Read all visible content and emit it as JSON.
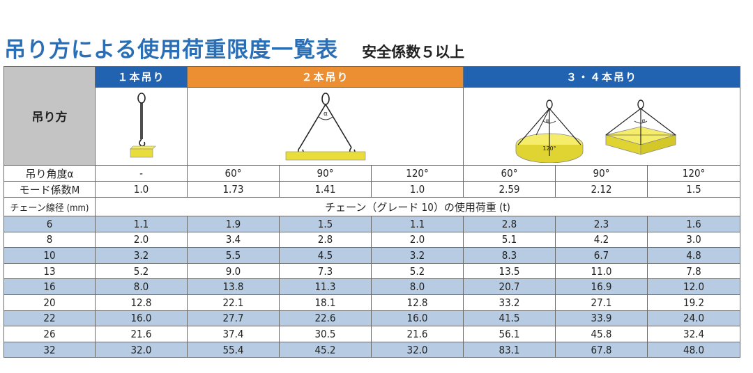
{
  "title": "吊り方による使用荷重限度一覧表",
  "subtitle": "安全係数５以上",
  "headers": {
    "method_label": "吊り方",
    "single": "１本吊り",
    "double": "２本吊り",
    "quad": "３・４本吊り"
  },
  "diagram_labels": {
    "alpha": "α",
    "angle_120": "120°"
  },
  "rows": {
    "angle": {
      "label": "吊り角度α",
      "values": [
        "-",
        "60°",
        "90°",
        "120°",
        "60°",
        "90°",
        "120°"
      ]
    },
    "mode": {
      "label": "モード係数M",
      "values": [
        "1.0",
        "1.73",
        "1.41",
        "1.0",
        "2.59",
        "2.12",
        "1.5"
      ]
    },
    "chain_header": {
      "label": "チェーン線径 (mm)",
      "span_text": "チェーン（グレード 10）の使用荷重 (t)"
    }
  },
  "data_rows": [
    {
      "size": "6",
      "values": [
        "1.1",
        "1.9",
        "1.5",
        "1.1",
        "2.8",
        "2.3",
        "1.6"
      ]
    },
    {
      "size": "8",
      "values": [
        "2.0",
        "3.4",
        "2.8",
        "2.0",
        "5.1",
        "4.2",
        "3.0"
      ]
    },
    {
      "size": "10",
      "values": [
        "3.2",
        "5.5",
        "4.5",
        "3.2",
        "8.3",
        "6.7",
        "4.8"
      ]
    },
    {
      "size": "13",
      "values": [
        "5.2",
        "9.0",
        "7.3",
        "5.2",
        "13.5",
        "11.0",
        "7.8"
      ]
    },
    {
      "size": "16",
      "values": [
        "8.0",
        "13.8",
        "11.3",
        "8.0",
        "20.7",
        "16.9",
        "12.0"
      ]
    },
    {
      "size": "20",
      "values": [
        "12.8",
        "22.1",
        "18.1",
        "12.8",
        "33.2",
        "27.1",
        "19.2"
      ]
    },
    {
      "size": "22",
      "values": [
        "16.0",
        "27.7",
        "22.6",
        "16.0",
        "41.5",
        "33.9",
        "24.0"
      ]
    },
    {
      "size": "26",
      "values": [
        "21.6",
        "37.4",
        "30.5",
        "21.6",
        "56.1",
        "45.8",
        "32.4"
      ]
    },
    {
      "size": "32",
      "values": [
        "32.0",
        "55.4",
        "45.2",
        "32.0",
        "83.1",
        "67.8",
        "48.0"
      ]
    }
  ],
  "colors": {
    "title": "#2a6fb6",
    "header_blue": "#2163b0",
    "header_orange": "#ec8f32",
    "stripe": "#b7cce2",
    "gray": "#c4c4c4",
    "load_yellow": "#e8dd3a"
  }
}
